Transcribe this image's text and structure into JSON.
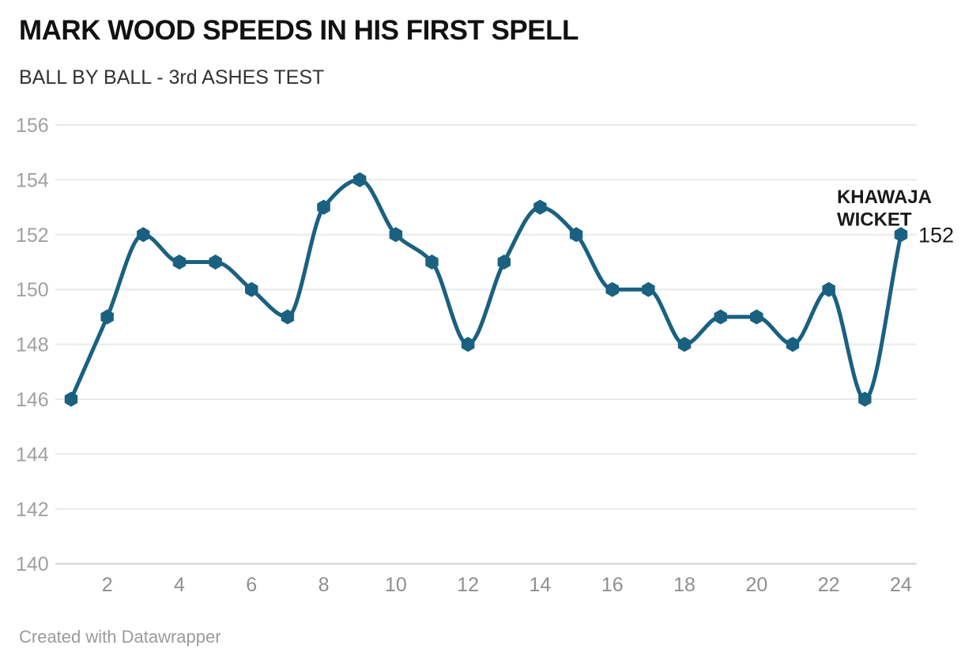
{
  "header": {
    "title": "MARK WOOD SPEEDS IN HIS FIRST SPELL",
    "subtitle": "BALL BY BALL - 3rd ASHES TEST"
  },
  "footer": {
    "credit": "Created with Datawrapper"
  },
  "chart_data": {
    "type": "line",
    "title": "MARK WOOD SPEEDS IN HIS FIRST SPELL",
    "subtitle": "BALL BY BALL - 3rd ASHES TEST",
    "xlabel": "",
    "ylabel": "",
    "x": [
      1,
      2,
      3,
      4,
      5,
      6,
      7,
      8,
      9,
      10,
      11,
      12,
      13,
      14,
      15,
      16,
      17,
      18,
      19,
      20,
      21,
      22,
      23,
      24
    ],
    "values": [
      146,
      149,
      152,
      151,
      151,
      150,
      149,
      153,
      154,
      152,
      151,
      148,
      151,
      153,
      152,
      150,
      150,
      148,
      149,
      149,
      148,
      150,
      146,
      152
    ],
    "xticks": [
      2,
      4,
      6,
      8,
      10,
      12,
      14,
      16,
      18,
      20,
      22,
      24
    ],
    "yticks": [
      140,
      142,
      144,
      146,
      148,
      150,
      152,
      154,
      156
    ],
    "xlim": [
      1,
      24
    ],
    "ylim": [
      140,
      156
    ],
    "grid": true,
    "legend": "none",
    "marker": "hexagon",
    "annotation": {
      "text_lines": [
        "KHAWAJA",
        "WICKET"
      ],
      "target_x": 24,
      "target_y": 152
    },
    "end_value_label": "152",
    "colors": {
      "line": "#1a6181",
      "grid": "#e9e9e9",
      "baseline": "#d2d2d2",
      "y_tick_text": "#a0a0a0",
      "x_tick_text": "#8f8f8f",
      "annotation_text": "#1a1a1a",
      "end_label_text": "#1a1a1a"
    }
  }
}
